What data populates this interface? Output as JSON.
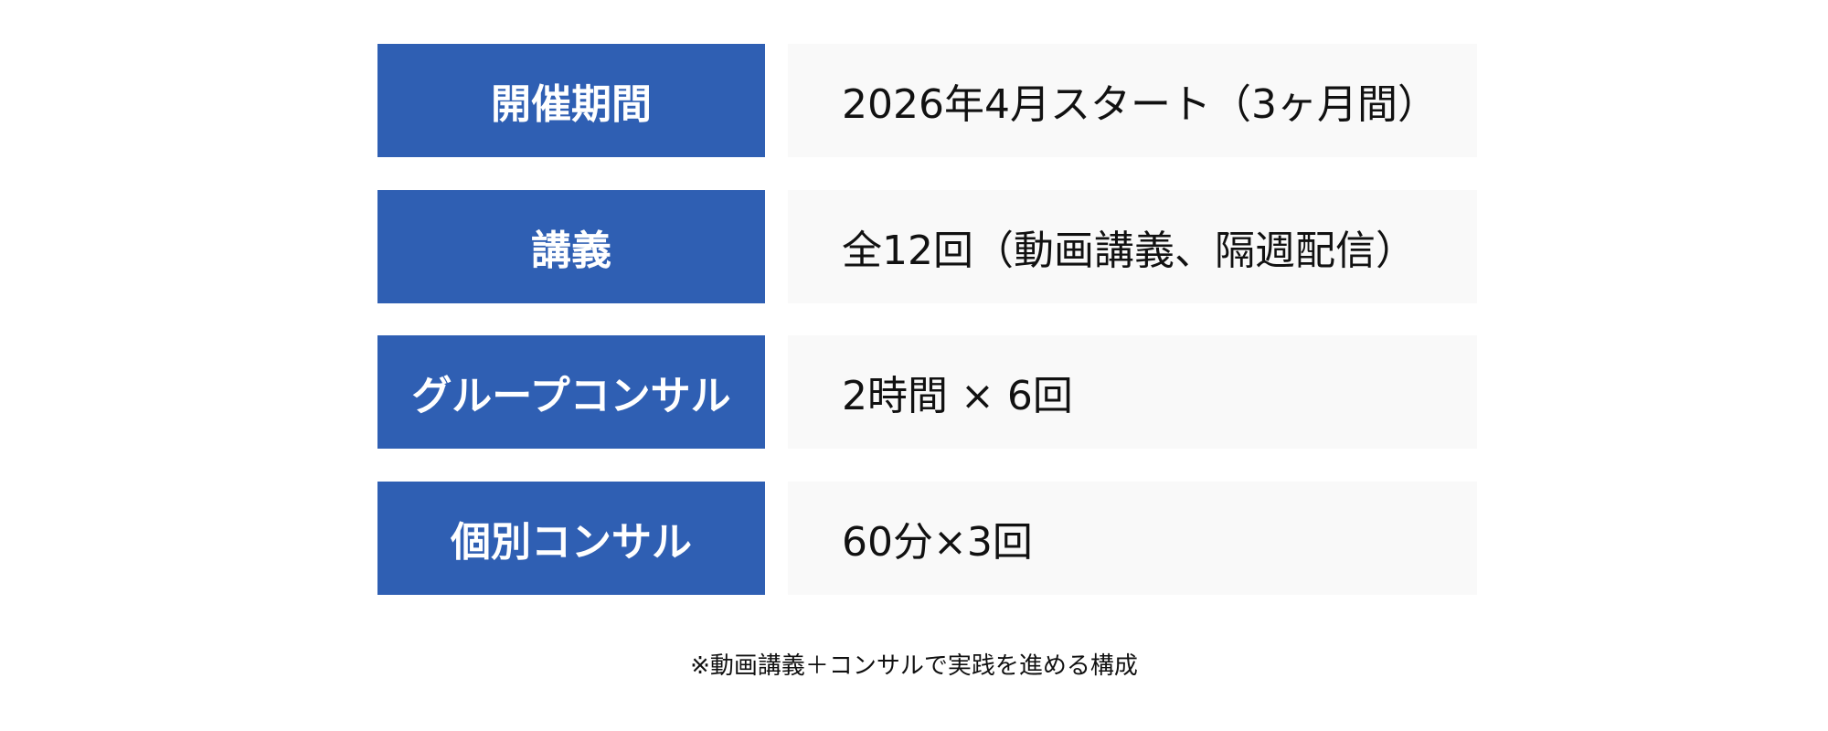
{
  "rows": [
    {
      "label": "開催期間",
      "value": "2026年4月スタート（3ヶ月間）"
    },
    {
      "label": "講義",
      "value": "全12回（動画講義、隔週配信）"
    },
    {
      "label": "グループコンサル",
      "value": "2時間 × 6回"
    },
    {
      "label": "個別コンサル",
      "value": "60分×3回"
    }
  ],
  "note": "※動画講義＋コンサルで実践を進める構成",
  "colors": {
    "label_bg": "#2f5fb3",
    "value_bg": "#f9f9f9"
  }
}
